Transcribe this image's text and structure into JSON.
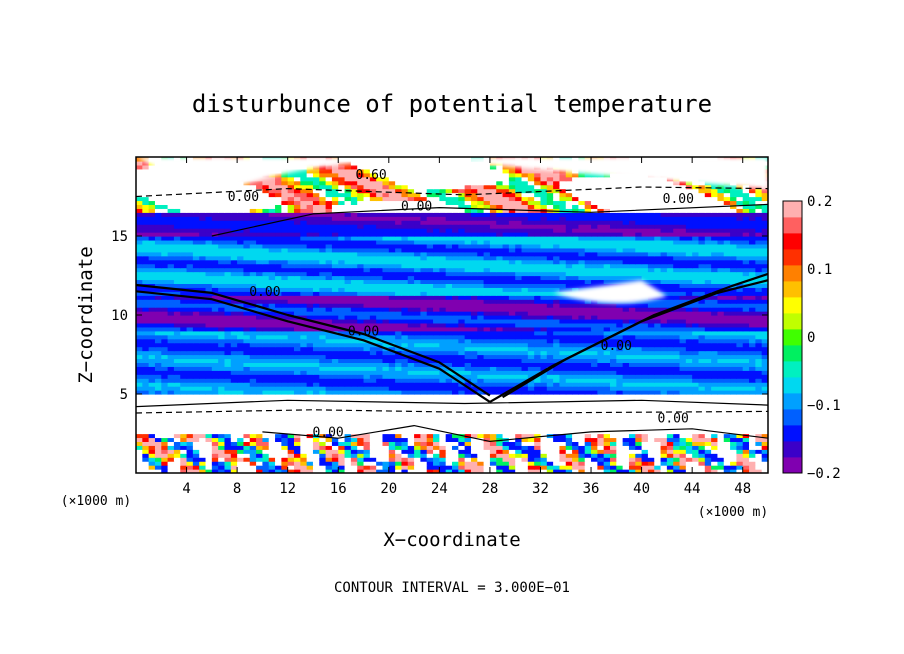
{
  "chart_data": {
    "type": "heatmap",
    "title": "disturbunce of potential temperature",
    "xlabel": "X−coordinate",
    "ylabel": "Z−coordinate",
    "x_unit": "(×1000 m)",
    "y_unit": "(×1000 m)",
    "xlim": [
      0,
      50
    ],
    "ylim": [
      0,
      20
    ],
    "x_ticks": [
      4,
      8,
      12,
      16,
      20,
      24,
      28,
      32,
      36,
      40,
      44,
      48
    ],
    "x_tick_labels": [
      "4",
      "8",
      "12",
      "16",
      "20",
      "24",
      "28",
      "32",
      "36",
      "40",
      "44",
      "48"
    ],
    "y_ticks": [
      5,
      10,
      15
    ],
    "y_tick_labels": [
      "5",
      "10",
      "15"
    ],
    "colorbar": {
      "range": [
        -0.2,
        0.2
      ],
      "ticks": [
        0.2,
        0.1,
        0,
        -0.1,
        -0.2
      ],
      "tick_labels": [
        "0.2",
        "0.1",
        "0",
        "−0.1",
        "−0.2"
      ],
      "colors": [
        "#8000b0",
        "#3b00c8",
        "#0010ff",
        "#0060ff",
        "#00a0ff",
        "#00d8f0",
        "#00f0c0",
        "#00f060",
        "#40ff00",
        "#c0ff00",
        "#ffff00",
        "#ffc000",
        "#ff8000",
        "#ff3000",
        "#ff0000",
        "#ff6060",
        "#ffb0b0"
      ]
    },
    "contour_labels": [
      {
        "text": "0.60",
        "x": 18.6,
        "z": 18.6
      },
      {
        "text": "0.00",
        "x": 8.5,
        "z": 17.2
      },
      {
        "text": "0.00",
        "x": 22.2,
        "z": 16.6
      },
      {
        "text": "0.00",
        "x": 42.9,
        "z": 17.1
      },
      {
        "text": "0.00",
        "x": 10.2,
        "z": 11.2
      },
      {
        "text": "0.00",
        "x": 18.0,
        "z": 8.7
      },
      {
        "text": "0.00",
        "x": 38.0,
        "z": 7.8
      },
      {
        "text": "0.00",
        "x": 15.2,
        "z": 2.3
      },
      {
        "text": "0.00",
        "x": 42.5,
        "z": 3.2
      }
    ],
    "contour_interval_text": "CONTOUR INTERVAL = 3.000E−01",
    "layers": [
      {
        "z": [
          0,
          2.6
        ],
        "band": "mixed-turbulent",
        "range": [
          -0.15,
          0.2
        ]
      },
      {
        "z": [
          2.6,
          4.9
        ],
        "band": "near-zero-white",
        "range": [
          -0.02,
          0.02
        ]
      },
      {
        "z": [
          4.9,
          9.0
        ],
        "band": "cyan-blue",
        "range": [
          -0.14,
          -0.08
        ]
      },
      {
        "z": [
          9.0,
          11.2
        ],
        "band": "blue-purple",
        "range": [
          -0.2,
          -0.12
        ]
      },
      {
        "z": [
          11.2,
          15.0
        ],
        "band": "cyan-blue",
        "range": [
          -0.14,
          -0.06
        ]
      },
      {
        "z": [
          15.0,
          16.5
        ],
        "band": "deep-blue",
        "range": [
          -0.18,
          -0.14
        ]
      },
      {
        "z": [
          16.5,
          20
        ],
        "band": "white-mixed",
        "range": [
          -0.05,
          0.2
        ]
      }
    ]
  }
}
